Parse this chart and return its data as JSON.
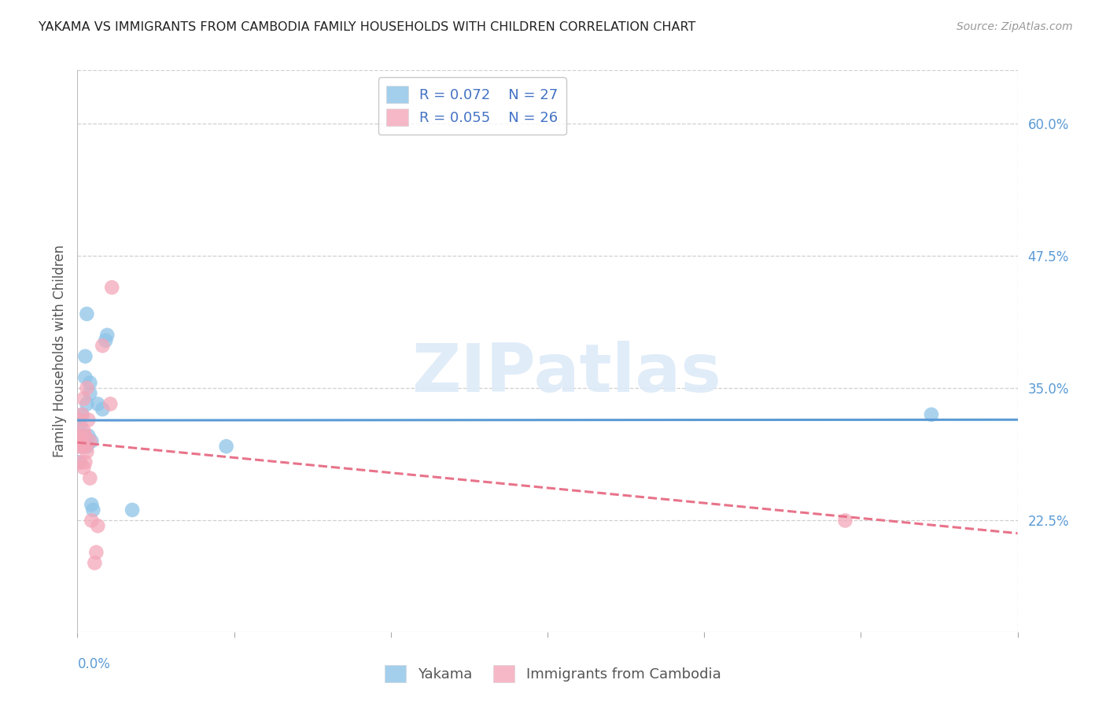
{
  "title": "YAKAMA VS IMMIGRANTS FROM CAMBODIA FAMILY HOUSEHOLDS WITH CHILDREN CORRELATION CHART",
  "source": "Source: ZipAtlas.com",
  "ylabel": "Family Households with Children",
  "ytick_labels": [
    "60.0%",
    "47.5%",
    "35.0%",
    "22.5%"
  ],
  "ytick_values": [
    0.6,
    0.475,
    0.35,
    0.225
  ],
  "xlim": [
    0.0,
    0.6
  ],
  "ylim": [
    0.12,
    0.65
  ],
  "color_blue": "#8ec4e8",
  "color_pink": "#f4a7b9",
  "color_blue_line": "#5b9bd5",
  "color_pink_line": "#e8738a",
  "color_legend_blue": "#4472c4",
  "color_legend_pink": "#e8738a",
  "color_axis_blue": "#5b9bd5",
  "yakama_x": [
    0.001,
    0.001,
    0.001,
    0.002,
    0.002,
    0.003,
    0.003,
    0.004,
    0.004,
    0.005,
    0.005,
    0.006,
    0.006,
    0.006,
    0.007,
    0.008,
    0.008,
    0.009,
    0.009,
    0.01,
    0.013,
    0.016,
    0.018,
    0.019,
    0.035,
    0.095,
    0.545
  ],
  "yakama_y": [
    0.305,
    0.32,
    0.28,
    0.295,
    0.315,
    0.305,
    0.325,
    0.295,
    0.305,
    0.36,
    0.38,
    0.295,
    0.335,
    0.42,
    0.305,
    0.345,
    0.355,
    0.3,
    0.24,
    0.235,
    0.335,
    0.33,
    0.395,
    0.4,
    0.235,
    0.295,
    0.325
  ],
  "cambodia_x": [
    0.001,
    0.001,
    0.001,
    0.002,
    0.002,
    0.003,
    0.003,
    0.004,
    0.004,
    0.004,
    0.005,
    0.005,
    0.005,
    0.006,
    0.006,
    0.007,
    0.008,
    0.008,
    0.009,
    0.011,
    0.012,
    0.013,
    0.016,
    0.021,
    0.022,
    0.49
  ],
  "cambodia_y": [
    0.305,
    0.295,
    0.32,
    0.28,
    0.3,
    0.325,
    0.295,
    0.275,
    0.31,
    0.34,
    0.295,
    0.28,
    0.305,
    0.29,
    0.35,
    0.32,
    0.265,
    0.3,
    0.225,
    0.185,
    0.195,
    0.22,
    0.39,
    0.335,
    0.445,
    0.225
  ],
  "watermark": "ZIPatlas",
  "background_color": "#ffffff",
  "grid_color": "#d0d0d0"
}
